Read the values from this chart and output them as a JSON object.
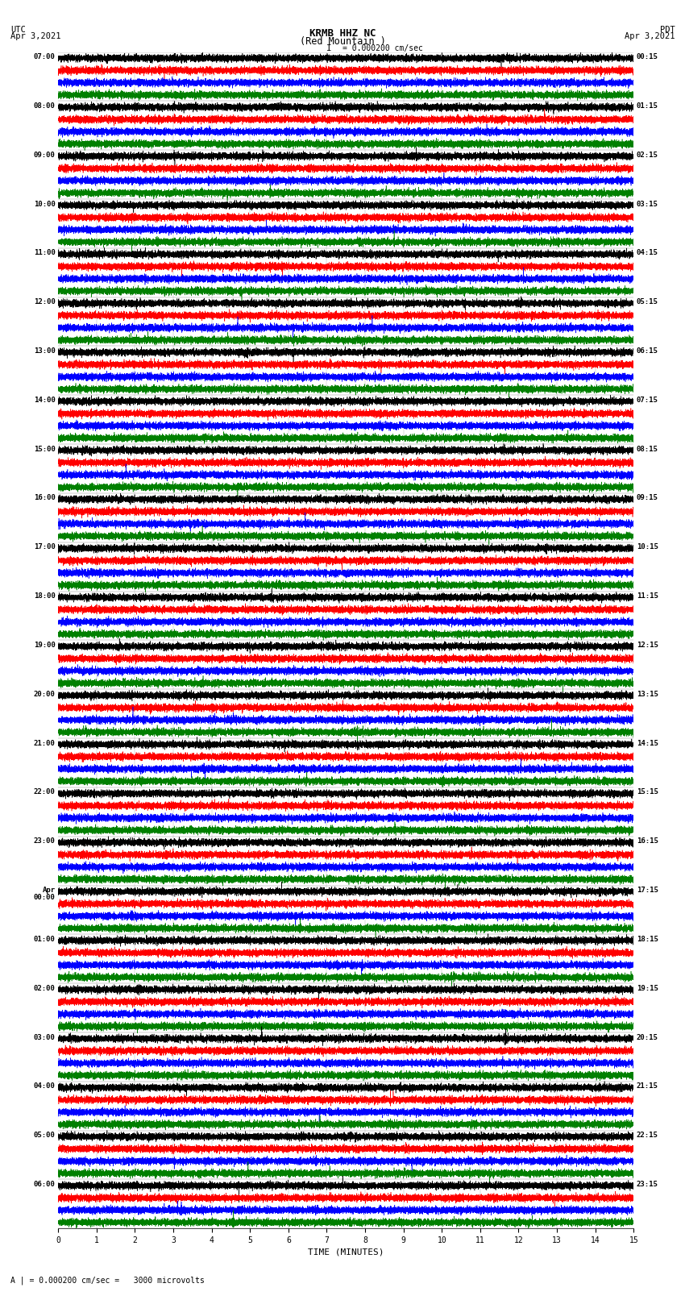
{
  "title_line1": "KRMB HHZ NC",
  "title_line2": "(Red Mountain )",
  "scale_text": "I = 0.000200 cm/sec",
  "footer_text": "A | = 0.000200 cm/sec =   3000 microvolts",
  "xlabel": "TIME (MINUTES)",
  "background_color": "#ffffff",
  "trace_colors": [
    "#000000",
    "#ff0000",
    "#0000ff",
    "#008000"
  ],
  "utc_times": [
    "07:00",
    "08:00",
    "09:00",
    "10:00",
    "11:00",
    "12:00",
    "13:00",
    "14:00",
    "15:00",
    "16:00",
    "17:00",
    "18:00",
    "19:00",
    "20:00",
    "21:00",
    "22:00",
    "23:00",
    "00:00",
    "01:00",
    "02:00",
    "03:00",
    "04:00",
    "05:00",
    "06:00"
  ],
  "pdt_times": [
    "00:15",
    "01:15",
    "02:15",
    "03:15",
    "04:15",
    "05:15",
    "06:15",
    "07:15",
    "08:15",
    "09:15",
    "10:15",
    "11:15",
    "12:15",
    "13:15",
    "14:15",
    "15:15",
    "16:15",
    "17:15",
    "18:15",
    "19:15",
    "20:15",
    "21:15",
    "22:15",
    "23:15"
  ],
  "n_rows": 24,
  "traces_per_row": 4,
  "minutes": 15,
  "sample_rate": 100,
  "amplitude_scale": 0.12,
  "figsize": [
    8.5,
    16.13
  ],
  "dpi": 100,
  "apr_row_idx": 17
}
